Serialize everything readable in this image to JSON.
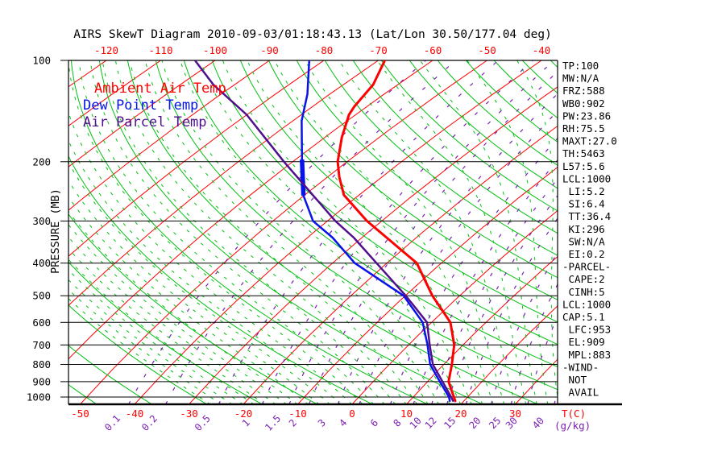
{
  "title": "AIRS SkewT Diagram 2010-09-03/01:18:43.13 (Lat/Lon 30.50/177.04 deg)",
  "colors": {
    "background": "#ffffff",
    "axis": "#000000",
    "temp": "#ff0000",
    "dewpoint": "#0713e8",
    "parcel": "#50108c",
    "isotherm": "#ff0000",
    "adiabat": "#00c010",
    "mixing": "#7a1fb4"
  },
  "legend": {
    "items": [
      {
        "label": "Ambient Air Temp",
        "series": "temp"
      },
      {
        "label": "Dew Point Temp",
        "series": "dewpoint"
      },
      {
        "label": "Air Parcel Temp",
        "series": "parcel"
      }
    ]
  },
  "axes": {
    "pressure_axis_label": "PRESSURE (MB)",
    "pressure_ticks_mb": [
      100,
      200,
      300,
      400,
      500,
      600,
      700,
      800,
      900,
      1000
    ],
    "top_temp_ticks_c": [
      -120,
      -110,
      -100,
      -90,
      -80,
      -70,
      -60,
      -50,
      -40
    ],
    "bottom_temp_ticks_c": [
      -50,
      -40,
      -30,
      -20,
      -10,
      0,
      10,
      20,
      30
    ],
    "temp_unit_label": "T(C)",
    "mixing_ratio_ticks_gkg": [
      0.1,
      0.2,
      0.5,
      1,
      1.5,
      2,
      3,
      4,
      6,
      8,
      10,
      12,
      15,
      20,
      25,
      30,
      40
    ],
    "mixing_ratio_unit_label": "(g/kg)"
  },
  "stats_panel": {
    "lines": [
      "TP:100",
      "MW:N/A",
      "FRZ:588",
      "WB0:902",
      "PW:23.86",
      "RH:75.5",
      "MAXT:27.0",
      "TH:5463",
      "L57:5.6",
      "LCL:1000",
      " LI:5.2",
      " SI:6.4",
      " TT:36.4",
      " KI:296",
      " SW:N/A",
      " EI:0.2",
      "-PARCEL-",
      " CAPE:2",
      " CINH:5",
      "LCL:1000",
      "CAP:5.1",
      " LFC:953",
      " EL:909",
      " MPL:883",
      "-WIND-",
      " NOT",
      " AVAIL"
    ]
  },
  "chart_data": {
    "type": "line",
    "title": "AIRS SkewT Diagram 2010-09-03/01:18:43.13 (Lat/Lon 30.50/177.04 deg)",
    "xlabel": "T(C)",
    "ylabel": "PRESSURE (MB)",
    "pressure_range_mb": [
      100,
      1050
    ],
    "temp_axis_range_c": [
      -50,
      37
    ],
    "grid": "skew-t log-p: isotherms, dry adiabats, moist adiabats (dashed), mixing ratio (dashed)",
    "skewt_grid": {
      "isotherms_c": {
        "min": -120,
        "max": 40,
        "step": 10
      },
      "dry_adiabats_k": {
        "min": 213,
        "max": 553,
        "step": 10
      },
      "moist_adiabats_c": {
        "min": -26,
        "max": 38,
        "step": 2
      },
      "mixing_ratio_gkg": [
        0.1,
        0.2,
        0.5,
        1,
        1.5,
        2,
        3,
        4,
        6,
        8,
        10,
        12,
        15,
        20,
        25,
        30,
        40
      ]
    },
    "series": [
      {
        "name": "Ambient Air Temp",
        "color_key": "temp",
        "width": 3,
        "points_p_t": [
          [
            100,
            -68.8
          ],
          [
            118,
            -64.5
          ],
          [
            137,
            -62.3
          ],
          [
            145,
            -61.2
          ],
          [
            169,
            -56.9
          ],
          [
            200,
            -51.7
          ],
          [
            222,
            -47.8
          ],
          [
            251,
            -42.8
          ],
          [
            300,
            -32.7
          ],
          [
            400,
            -14.5
          ],
          [
            500,
            -5.0
          ],
          [
            600,
            3.5
          ],
          [
            700,
            8.4
          ],
          [
            800,
            11.5
          ],
          [
            900,
            13.9
          ],
          [
            1000,
            17.5
          ],
          [
            1027,
            18.4
          ]
        ]
      },
      {
        "name": "Dew Point Temp",
        "color_key": "dewpoint",
        "width": 2.5,
        "thick_segment_p": [
          197,
          252
        ],
        "thick_width": 5.5,
        "points_p_t": [
          [
            100,
            -82.7
          ],
          [
            126,
            -74.1
          ],
          [
            151,
            -68.4
          ],
          [
            197,
            -58.8
          ],
          [
            252,
            -50.1
          ],
          [
            300,
            -42.6
          ],
          [
            336,
            -35.4
          ],
          [
            400,
            -25.9
          ],
          [
            500,
            -10.3
          ],
          [
            600,
            -1.6
          ],
          [
            700,
            3.5
          ],
          [
            800,
            7.5
          ],
          [
            900,
            12.3
          ],
          [
            1000,
            16.6
          ],
          [
            1027,
            17.4
          ]
        ]
      },
      {
        "name": "Air Parcel Temp",
        "color_key": "parcel",
        "width": 2.5,
        "points_p_t": [
          [
            100,
            -103.7
          ],
          [
            118,
            -93.9
          ],
          [
            145,
            -80.0
          ],
          [
            201,
            -61.3
          ],
          [
            248,
            -49.2
          ],
          [
            300,
            -38.5
          ],
          [
            336,
            -31.5
          ],
          [
            400,
            -21.9
          ],
          [
            500,
            -9.9
          ],
          [
            600,
            -0.8
          ],
          [
            700,
            3.9
          ],
          [
            800,
            8.0
          ],
          [
            900,
            12.8
          ],
          [
            1000,
            17.0
          ],
          [
            1027,
            18.0
          ]
        ]
      }
    ]
  }
}
